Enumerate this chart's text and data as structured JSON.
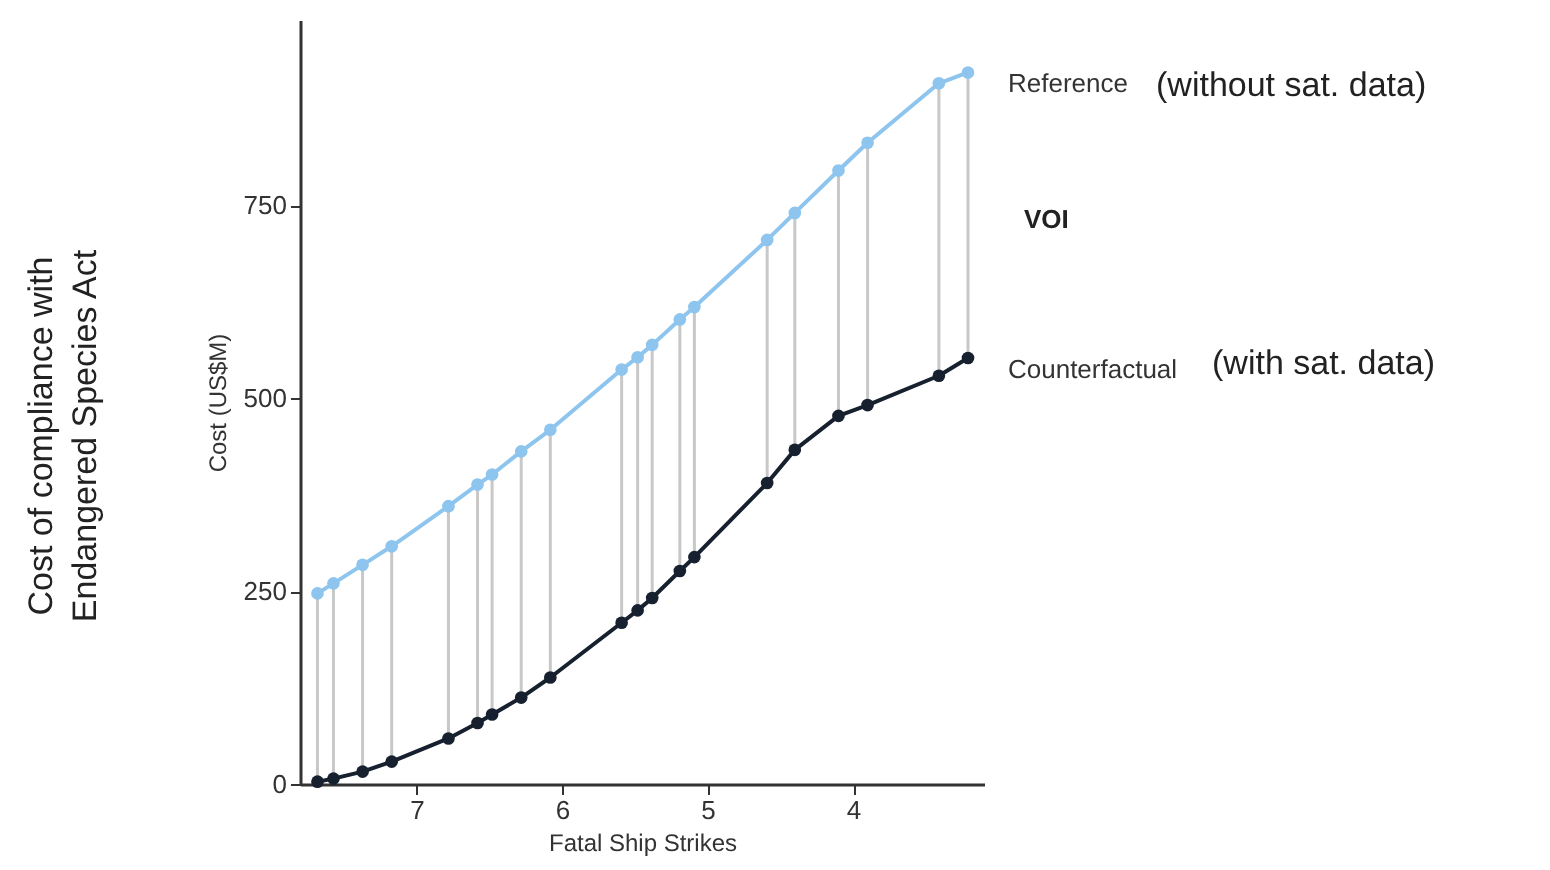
{
  "chart_data": {
    "type": "line",
    "xlabel": "Fatal Ship Strikes",
    "ylabel": "Cost (US$M)",
    "x": [
      7.68,
      7.57,
      7.37,
      7.17,
      6.78,
      6.58,
      6.48,
      6.28,
      6.08,
      5.59,
      5.48,
      5.38,
      5.19,
      5.09,
      4.59,
      4.4,
      4.1,
      3.9,
      3.41,
      3.21
    ],
    "series": [
      {
        "name": "VOI",
        "type": "bar",
        "color": "#c8c8c8",
        "base": [
          3,
          7,
          16,
          29,
          59,
          79,
          90,
          112,
          138,
          209,
          225,
          241,
          276,
          294,
          390,
          433,
          477,
          491,
          529,
          552
        ],
        "values": [
          244,
          253,
          268,
          279,
          301,
          309,
          311,
          319,
          321,
          328,
          328,
          328,
          326,
          324,
          315,
          307,
          318,
          340,
          379,
          370
        ]
      },
      {
        "name": "Reference",
        "color": "#8ec5ee",
        "values": [
          247,
          260,
          284,
          308,
          360,
          388,
          401,
          431,
          459,
          537,
          553,
          569,
          602,
          618,
          705,
          740,
          795,
          831,
          908,
          922
        ]
      },
      {
        "name": "Counterfactual",
        "color": "#16202e",
        "values": [
          3,
          7,
          16,
          29,
          59,
          79,
          90,
          112,
          138,
          209,
          225,
          241,
          276,
          294,
          390,
          433,
          477,
          491,
          529,
          552
        ]
      }
    ],
    "xlim": [
      7.8,
      3.1
    ],
    "xticks": [
      7,
      6,
      5,
      4
    ],
    "ylim": [
      0,
      990
    ],
    "yticks": [
      0,
      250,
      500,
      750
    ],
    "grid": false,
    "marker": "circle",
    "line_style": "solid",
    "annotations": [
      "(without sat. data)",
      "(with sat. data)",
      "Cost of compliance with Endangered Species Act"
    ]
  }
}
